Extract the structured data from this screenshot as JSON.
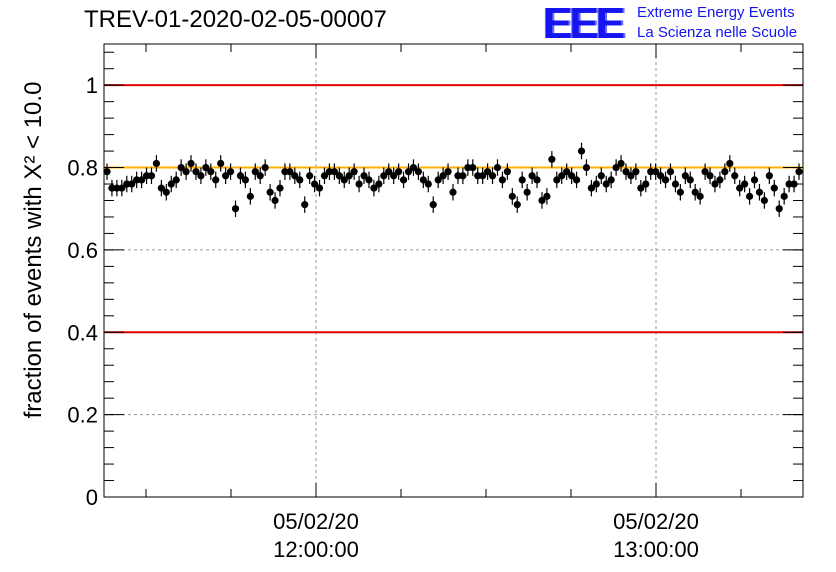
{
  "title": "TREV-01-2020-02-05-00007",
  "logo": {
    "letters": "EEE",
    "line1": "Extreme Energy Events",
    "line2": "La Scienza nelle Scuole",
    "color": "#1515f0"
  },
  "chart_data": {
    "type": "scatter",
    "title": "TREV-01-2020-02-05-00007",
    "ylabel": "fraction of events with X² < 10.0",
    "ylim": [
      0,
      1.1
    ],
    "yticks": [
      "0",
      "0.2",
      "0.4",
      "0.6",
      "0.8",
      "1"
    ],
    "xticks": [
      {
        "date": "05/02/20",
        "time": "12:00:00"
      },
      {
        "date": "05/02/20",
        "time": "13:00:00"
      }
    ],
    "grid": true,
    "reference_lines": [
      {
        "value": 1.0,
        "color": "#e00000"
      },
      {
        "value": 0.4,
        "color": "#e00000"
      },
      {
        "value": 0.8,
        "color": "#ffb000"
      }
    ],
    "series": [
      {
        "marker_color": "#000000",
        "error": 0.02,
        "values": [
          0.79,
          0.75,
          0.75,
          0.75,
          0.76,
          0.76,
          0.77,
          0.77,
          0.78,
          0.78,
          0.81,
          0.75,
          0.74,
          0.76,
          0.77,
          0.8,
          0.79,
          0.81,
          0.79,
          0.78,
          0.8,
          0.79,
          0.77,
          0.81,
          0.78,
          0.79,
          0.7,
          0.78,
          0.77,
          0.73,
          0.79,
          0.78,
          0.8,
          0.74,
          0.72,
          0.75,
          0.79,
          0.79,
          0.78,
          0.77,
          0.71,
          0.78,
          0.76,
          0.75,
          0.78,
          0.79,
          0.79,
          0.78,
          0.77,
          0.78,
          0.79,
          0.76,
          0.78,
          0.77,
          0.75,
          0.76,
          0.78,
          0.79,
          0.78,
          0.79,
          0.77,
          0.79,
          0.8,
          0.79,
          0.77,
          0.76,
          0.71,
          0.77,
          0.78,
          0.79,
          0.74,
          0.78,
          0.78,
          0.8,
          0.8,
          0.78,
          0.78,
          0.79,
          0.78,
          0.8,
          0.77,
          0.79,
          0.73,
          0.71,
          0.77,
          0.74,
          0.78,
          0.77,
          0.72,
          0.73,
          0.82,
          0.77,
          0.78,
          0.79,
          0.78,
          0.77,
          0.84,
          0.8,
          0.75,
          0.76,
          0.78,
          0.76,
          0.77,
          0.8,
          0.81,
          0.79,
          0.78,
          0.79,
          0.75,
          0.76,
          0.79,
          0.79,
          0.78,
          0.77,
          0.79,
          0.76,
          0.74,
          0.78,
          0.77,
          0.74,
          0.73,
          0.79,
          0.78,
          0.76,
          0.77,
          0.79,
          0.81,
          0.78,
          0.75,
          0.76,
          0.73,
          0.77,
          0.74,
          0.72,
          0.78,
          0.75,
          0.7,
          0.73,
          0.76,
          0.76,
          0.79
        ]
      }
    ]
  }
}
